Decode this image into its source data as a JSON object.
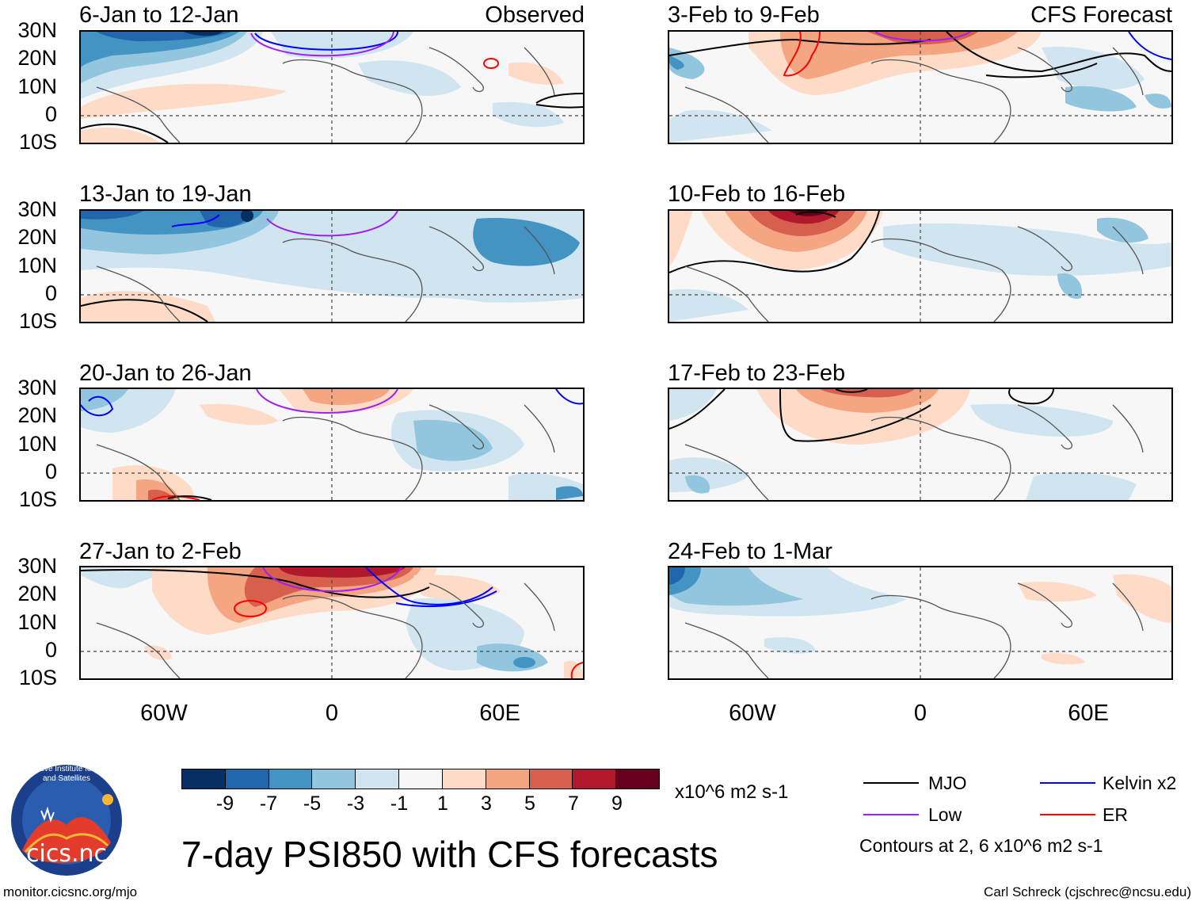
{
  "title": "7-day PSI850 with CFS forecasts",
  "panels": [
    {
      "title": "6-Jan to 12-Jan",
      "tag": "Observed"
    },
    {
      "title": "13-Jan to 19-Jan",
      "tag": ""
    },
    {
      "title": "20-Jan to 26-Jan",
      "tag": ""
    },
    {
      "title": "27-Jan to 2-Feb",
      "tag": ""
    },
    {
      "title": "3-Feb to 9-Feb",
      "tag": "CFS Forecast"
    },
    {
      "title": "10-Feb to 16-Feb",
      "tag": ""
    },
    {
      "title": "17-Feb to 23-Feb",
      "tag": ""
    },
    {
      "title": "24-Feb to 1-Mar",
      "tag": ""
    }
  ],
  "lat_labels": [
    "30N",
    "20N",
    "10N",
    "0",
    "10S"
  ],
  "lon_labels": [
    "60W",
    "0",
    "60E"
  ],
  "colorbar": {
    "labels": [
      "-9",
      "-7",
      "-5",
      "-3",
      "-1",
      "1",
      "3",
      "5",
      "7",
      "9"
    ],
    "colors": [
      "#053061",
      "#2166ac",
      "#4393c3",
      "#92c5de",
      "#d1e5f0",
      "#f7f7f7",
      "#fddbc7",
      "#f4a582",
      "#d6604d",
      "#b2182b",
      "#67001f"
    ],
    "units": "x10^6 m2 s-1"
  },
  "legend": {
    "items": [
      {
        "label": "MJO",
        "color": "#000000"
      },
      {
        "label": "Kelvin x2",
        "color": "#0000ff"
      },
      {
        "label": "Low",
        "color": "#a020f0"
      },
      {
        "label": "ER",
        "color": "#ff0000"
      }
    ],
    "note": "Contours at 2, 6 x10^6 m2 s-1"
  },
  "logo_text": "cics.nc",
  "logo_ring_text": "Cooperative Institute for Climate and Satellites",
  "footer_left": "monitor.cicsnc.org/mjo",
  "footer_right": "Carl Schreck (cjschrec@ncsu.edu)"
}
